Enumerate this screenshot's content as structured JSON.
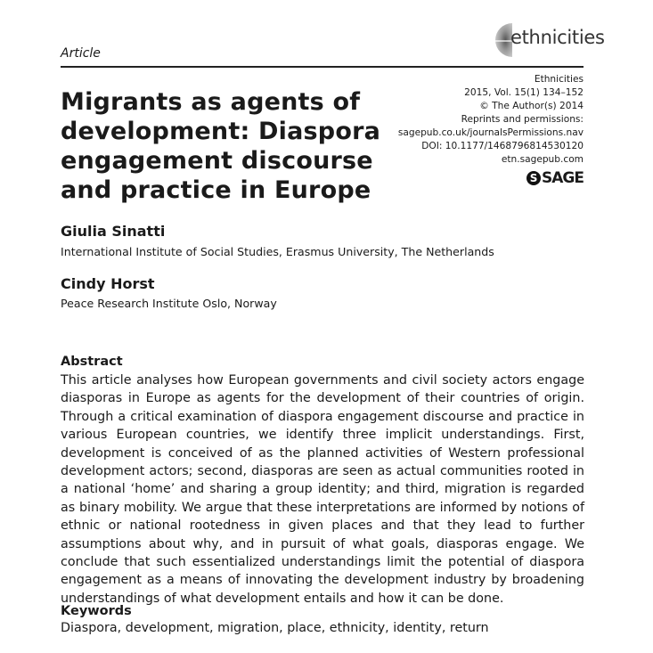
{
  "header": {
    "article_type": "Article",
    "journal_logo": "ethnicities",
    "meta": [
      "Ethnicities",
      "2015, Vol. 15(1) 134–152",
      "© The Author(s) 2014",
      "Reprints and permissions:",
      "sagepub.co.uk/journalsPermissions.nav",
      "DOI: 10.1177/1468796814530120",
      "etn.sagepub.com"
    ],
    "publisher_logo": "SAGE"
  },
  "title": "Migrants as agents of development: Diaspora engagement discourse and practice in Europe",
  "authors": [
    {
      "name": "Giulia Sinatti",
      "affiliation": "International Institute of Social Studies, Erasmus University, The Netherlands"
    },
    {
      "name": "Cindy Horst",
      "affiliation": "Peace Research Institute Oslo, Norway"
    }
  ],
  "abstract": {
    "heading": "Abstract",
    "text": "This article analyses how European governments and civil society actors engage dias­poras in Europe as agents for the development of their countries of origin. Through a critical examination of diaspora engagement discourse and practice in various European countries, we identify three implicit understandings. First, development is conceived of as the planned activities of Western professional development actors; second, diasporas are seen as actual communities rooted in a national ‘home’ and sharing a group identity; and third, migration is regarded as binary mobility. We argue that these interpretations are informed by notions of ethnic or national rootedness in given places and that they lead to further assumptions about why, and in pursuit of what goals, diasporas engage. We conclude that such essentialized understandings limit the potential of diaspora engagement as a means of innovating the development industry by broadening under­standings of what development entails and how it can be done."
  },
  "keywords": {
    "heading": "Keywords",
    "text": "Diaspora, development, migration, place, ethnicity, identity, return"
  }
}
